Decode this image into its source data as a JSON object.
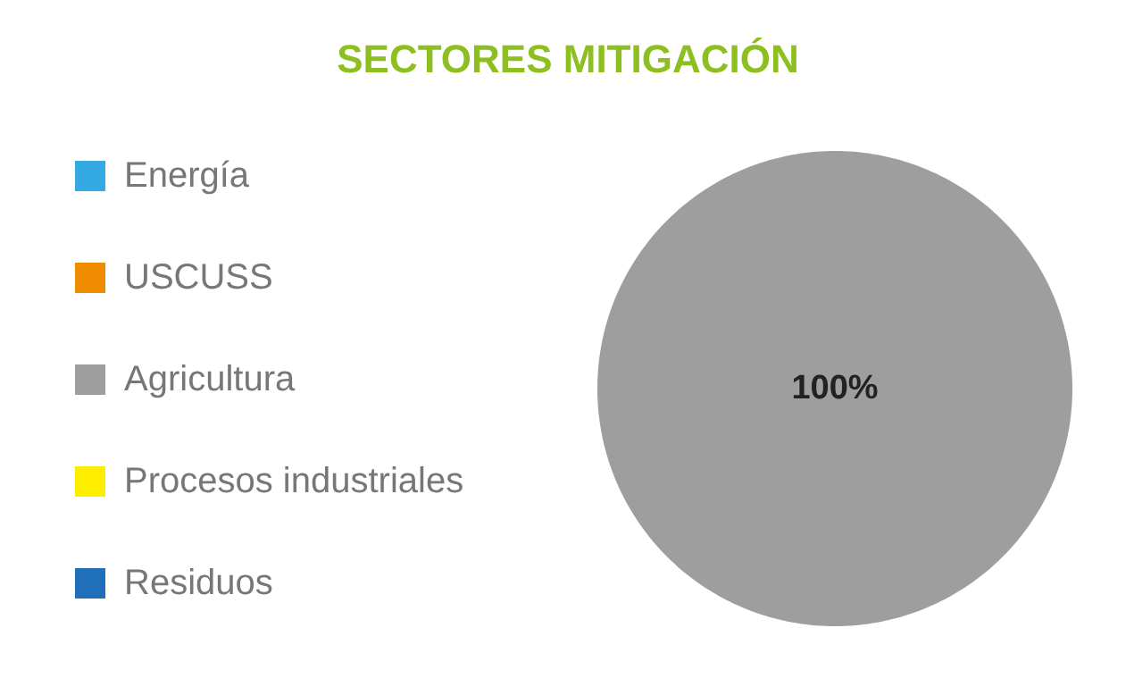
{
  "chart_data": {
    "type": "pie",
    "title": "SECTORES MITIGACIÓN",
    "categories": [
      "Energía",
      "USCUSS",
      "Agricultura",
      "Procesos industriales",
      "Residuos"
    ],
    "values": [
      0,
      0,
      100,
      0,
      0
    ],
    "colors": [
      "#35a9e1",
      "#f08c00",
      "#9e9e9e",
      "#ffed00",
      "#1f6fba"
    ],
    "value_labels": [
      null,
      null,
      "100%",
      null,
      null
    ],
    "legend": "left"
  }
}
